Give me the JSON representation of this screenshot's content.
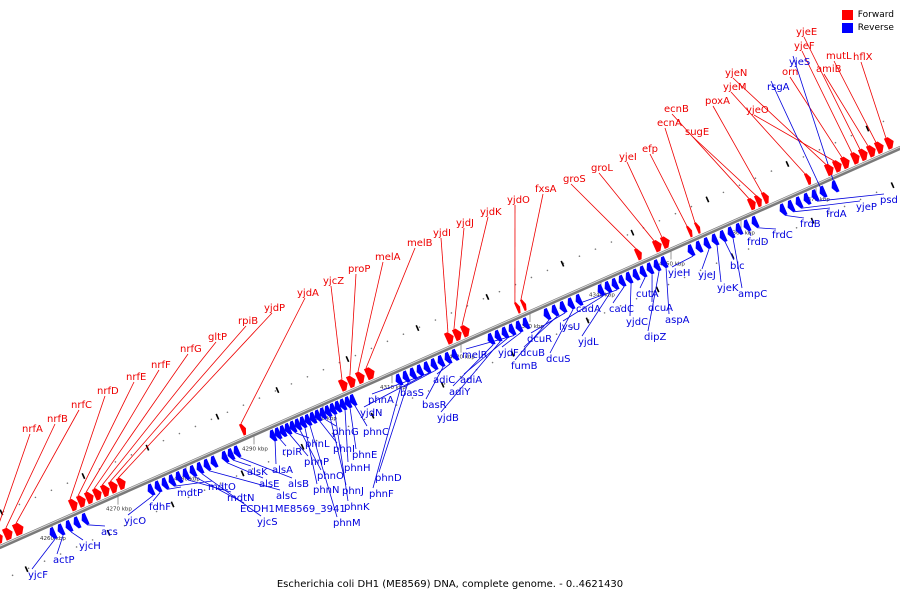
{
  "title": "Escherichia coli DH1 (ME8569) DNA, complete genome. - 0..4621430",
  "legend": [
    {
      "label": "Forward",
      "color": "#ff0000"
    },
    {
      "label": "Reverse",
      "color": "#0000ff"
    }
  ],
  "colors": {
    "forward": "#ff0000",
    "reverse": "#0000ff",
    "line_forward": "#ee0000",
    "line_reverse": "#0000dd",
    "backbone": "#777777"
  },
  "ticks": [
    "4260 kbp",
    "4270 kbp",
    "4280 kbp",
    "4290 kbp",
    "4300 kbp",
    "4310 kbp",
    "4320 kbp",
    "4330 kbp",
    "4340 kbp",
    "4350 kbp",
    "4360 kbp",
    "4370 kbp"
  ],
  "forward_genes": [
    "nrfA",
    "nrfB",
    "nrfC",
    "nrfD",
    "nrfE",
    "nrfF",
    "nrfG",
    "gltP",
    "rpiB",
    "yjdP",
    "yjdA",
    "yjcZ",
    "proP",
    "melA",
    "melB",
    "yjdI",
    "yjdJ",
    "yjdK",
    "yjdO",
    "fxsA",
    "groS",
    "groL",
    "yjeI",
    "efp",
    "ecnA",
    "ecnB",
    "sugE",
    "poxA",
    "yjeM",
    "yjeN",
    "yjeO",
    "orn",
    "yjeF",
    "yjeE",
    "amiB",
    "mutL",
    "hflX"
  ],
  "reverse_genes": [
    "yjcF",
    "actP",
    "yjcH",
    "acs",
    "yjcO",
    "fdhF",
    "mdtP",
    "mdtO",
    "mdtN",
    "ECDH1ME8569_3941",
    "yjcS",
    "alsC",
    "alsE",
    "alsK",
    "alsB",
    "alsA",
    "rpiR",
    "phnP",
    "phnL",
    "phnO",
    "phnN",
    "phnM",
    "phnI",
    "phnG",
    "phnJ",
    "phnK",
    "phnH",
    "phnE",
    "phnC",
    "phnF",
    "phnD",
    "yjdN",
    "phnA",
    "basS",
    "basR",
    "adiC",
    "adiY",
    "yjdB",
    "adiA",
    "melR",
    "yjdF",
    "fumB",
    "dcuB",
    "dcuR",
    "dcuS",
    "lysU",
    "yjdL",
    "cadA",
    "cadC",
    "yjdC",
    "cutA",
    "dcuA",
    "dipZ",
    "aspA",
    "yjeH",
    "yjeJ",
    "yjeK",
    "blc",
    "ampC",
    "frdD",
    "frdC",
    "frdB",
    "frdA",
    "yjeP",
    "psd",
    "rsgA",
    "yjeS"
  ]
}
